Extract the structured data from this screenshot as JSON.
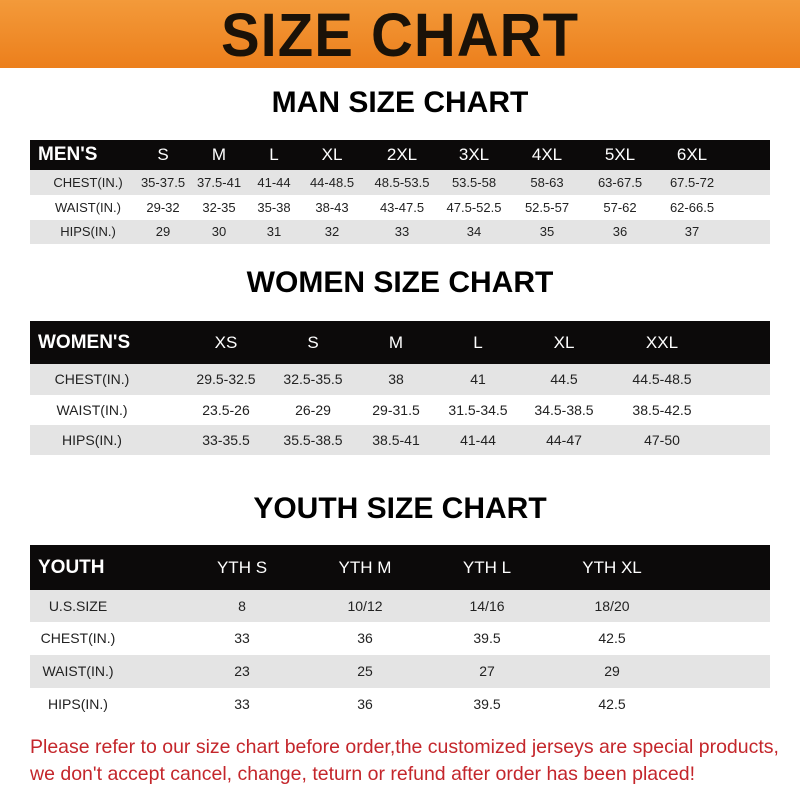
{
  "banner": {
    "title": "SIZE CHART",
    "color": "#ee8526"
  },
  "men": {
    "title": "MAN SIZE CHART",
    "header": [
      "MEN'S",
      "S",
      "M",
      "L",
      "XL",
      "2XL",
      "3XL",
      "4XL",
      "5XL",
      "6XL"
    ],
    "rows": [
      [
        "CHEST(IN.)",
        "35-37.5",
        "37.5-41",
        "41-44",
        "44-48.5",
        "48.5-53.5",
        "53.5-58",
        "58-63",
        "63-67.5",
        "67.5-72"
      ],
      [
        "WAIST(IN.)",
        "29-32",
        "32-35",
        "35-38",
        "38-43",
        "43-47.5",
        "47.5-52.5",
        "52.5-57",
        "57-62",
        "62-66.5"
      ],
      [
        "HIPS(IN.)",
        "29",
        "30",
        "31",
        "32",
        "33",
        "34",
        "35",
        "36",
        "37"
      ]
    ]
  },
  "women": {
    "title": "WOMEN SIZE CHART",
    "header": [
      "WOMEN'S",
      "XS",
      "S",
      "M",
      "L",
      "XL",
      "XXL"
    ],
    "rows": [
      [
        "CHEST(IN.)",
        "29.5-32.5",
        "32.5-35.5",
        "38",
        "41",
        "44.5",
        "44.5-48.5"
      ],
      [
        "WAIST(IN.)",
        "23.5-26",
        "26-29",
        "29-31.5",
        "31.5-34.5",
        "34.5-38.5",
        "38.5-42.5"
      ],
      [
        "HIPS(IN.)",
        "33-35.5",
        "35.5-38.5",
        "38.5-41",
        "41-44",
        "44-47",
        "47-50"
      ]
    ]
  },
  "youth": {
    "title": "YOUTH SIZE CHART",
    "header": [
      "YOUTH",
      "YTH S",
      "YTH M",
      "YTH L",
      "YTH XL"
    ],
    "rows": [
      [
        "U.S.SIZE",
        "8",
        "10/12",
        "14/16",
        "18/20"
      ],
      [
        "CHEST(IN.)",
        "33",
        "36",
        "39.5",
        "42.5"
      ],
      [
        "WAIST(IN.)",
        "23",
        "25",
        "27",
        "29"
      ],
      [
        "HIPS(IN.)",
        "33",
        "36",
        "39.5",
        "42.5"
      ]
    ]
  },
  "note": "Please refer to our size chart before order,the customized jerseys are special products, we don't accept cancel, change, teturn or refund after order has been placed!",
  "note_color": "#c4262b"
}
